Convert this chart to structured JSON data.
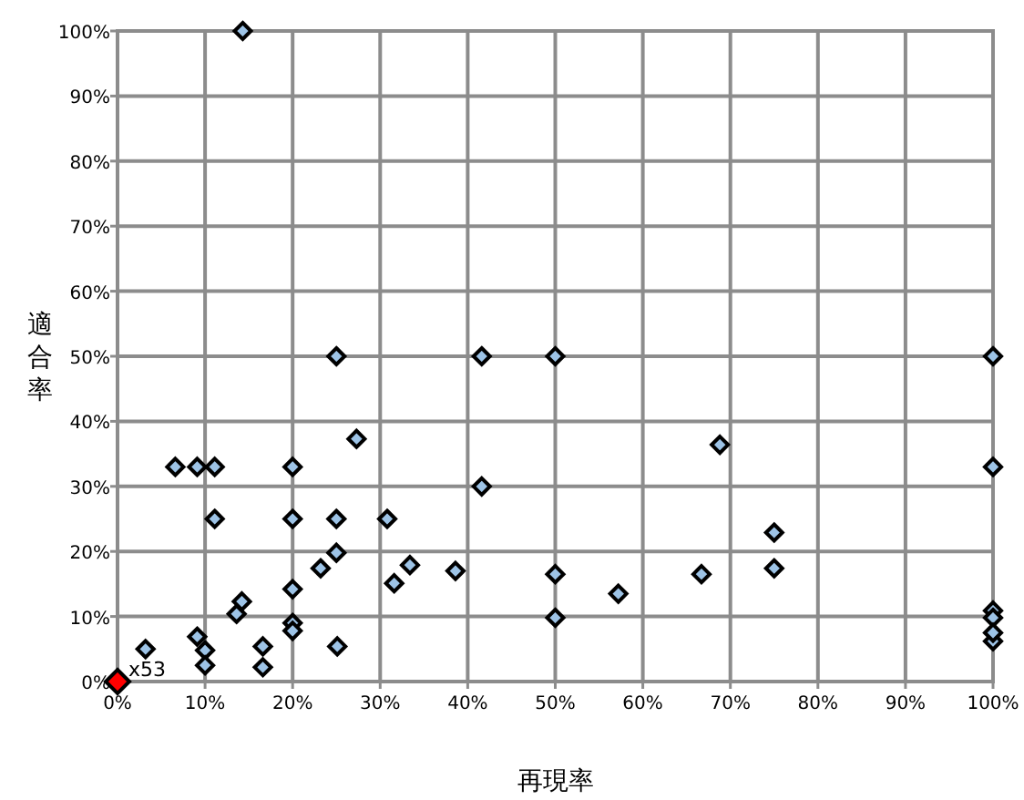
{
  "chart_data": {
    "type": "scatter",
    "xlabel": "再現率",
    "ylabel": "適合率",
    "xlim": [
      0,
      100
    ],
    "ylim": [
      0,
      100
    ],
    "xticks": [
      {
        "value": 0,
        "label": "0%"
      },
      {
        "value": 10,
        "label": "10%"
      },
      {
        "value": 20,
        "label": "20%"
      },
      {
        "value": 30,
        "label": "30%"
      },
      {
        "value": 40,
        "label": "40%"
      },
      {
        "value": 50,
        "label": "50%"
      },
      {
        "value": 60,
        "label": "60%"
      },
      {
        "value": 70,
        "label": "70%"
      },
      {
        "value": 80,
        "label": "80%"
      },
      {
        "value": 90,
        "label": "90%"
      },
      {
        "value": 100,
        "label": "100%"
      }
    ],
    "yticks": [
      {
        "value": 0,
        "label": "0%"
      },
      {
        "value": 10,
        "label": "10%"
      },
      {
        "value": 20,
        "label": "20%"
      },
      {
        "value": 30,
        "label": "30%"
      },
      {
        "value": 40,
        "label": "40%"
      },
      {
        "value": 50,
        "label": "50%"
      },
      {
        "value": 60,
        "label": "60%"
      },
      {
        "value": 70,
        "label": "70%"
      },
      {
        "value": 80,
        "label": "80%"
      },
      {
        "value": 90,
        "label": "90%"
      },
      {
        "value": 100,
        "label": "100%"
      }
    ],
    "grid": true,
    "marker": "diamond",
    "series": [
      {
        "color": "#9dc3e6",
        "x": [
          14.3,
          25,
          41.6,
          50,
          100,
          27.3,
          68.8,
          100,
          6.6,
          9.1,
          11.1,
          20,
          41.6,
          11.1,
          20,
          25,
          30.8,
          75,
          25,
          33.4,
          38.6,
          23.2,
          31.6,
          50,
          57.2,
          66.7,
          75,
          20,
          14.2,
          13.6,
          50,
          100,
          100,
          100,
          100,
          3.2,
          9.1,
          10,
          10,
          16.6,
          16.6,
          20,
          20,
          25.1
        ],
        "values": [
          100,
          50,
          50,
          50,
          50,
          37.3,
          36.4,
          33,
          33,
          33,
          33,
          33,
          30,
          25,
          25,
          25,
          25,
          22.9,
          19.8,
          17.9,
          17,
          17.4,
          15.1,
          16.5,
          13.5,
          16.5,
          17.4,
          14.2,
          12.3,
          10.4,
          9.8,
          10.9,
          9.8,
          6.2,
          7.5,
          5,
          6.9,
          4.8,
          2.5,
          5.4,
          2.2,
          9,
          7.8,
          5.4
        ]
      },
      {
        "color": "#ff0000",
        "x": [
          0
        ],
        "values": [
          0
        ]
      }
    ],
    "annotations": [
      {
        "text": "x53",
        "x": 0,
        "y": 0
      }
    ]
  }
}
